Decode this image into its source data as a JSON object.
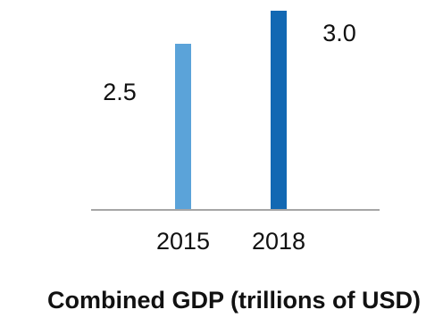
{
  "chart_data": {
    "type": "bar",
    "title": "Combined GDP (trillions of USD)",
    "xlabel": "",
    "ylabel": "",
    "categories": [
      "2015",
      "2018"
    ],
    "values": [
      2.5,
      3.0
    ],
    "value_labels": [
      "2.5",
      "3.0"
    ],
    "colors": [
      "#5ba3d9",
      "#1268b3"
    ],
    "axis_color": "#a6a6a6",
    "ylim": [
      0,
      3.0
    ],
    "grid": false,
    "legend": "none"
  }
}
